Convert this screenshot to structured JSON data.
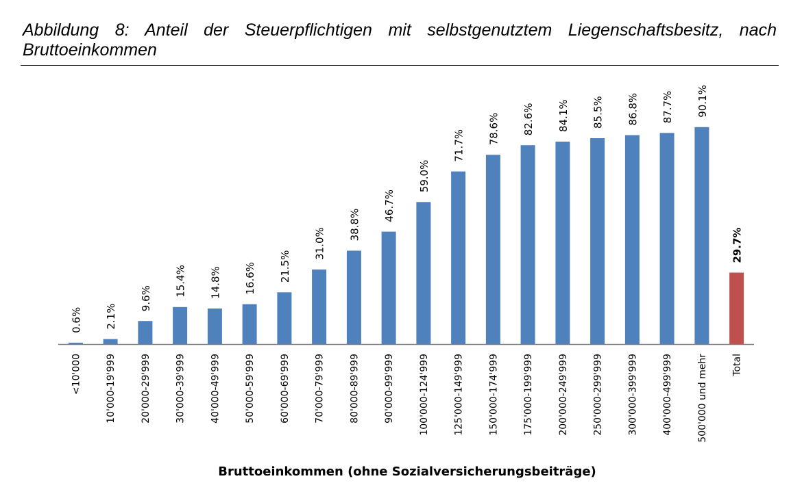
{
  "figure": {
    "caption": "Abbildung 8: Anteil der Steuerpflichtigen mit selbstgenutztem Liegenschaftsbesitz, nach Bruttoeinkommen"
  },
  "colors": {
    "bar": "#4F81BD",
    "total_bar": "#C0504D",
    "axis": "#808080",
    "text": "#000000"
  },
  "chart_data": {
    "type": "bar",
    "title": "",
    "xlabel": "Bruttoeinkommen (ohne Sozialversicherungsbeiträge)",
    "ylabel": "",
    "ylim": [
      0,
      100
    ],
    "grid": false,
    "categories": [
      "<10'000",
      "10'000-19'999",
      "20'000-29'999",
      "30'000-39'999",
      "40'000-49'999",
      "50'000-59'999",
      "60'000-69'999",
      "70'000-79'999",
      "80'000-89'999",
      "90'000-99'999",
      "100'000-124'999",
      "125'000-149'999",
      "150'000-174'999",
      "175'000-199'999",
      "200'000-249'999",
      "250'000-299'999",
      "300'000-399'999",
      "400'000-499'999",
      "500'000 und mehr",
      "Total"
    ],
    "values": [
      0.6,
      2.1,
      9.6,
      15.4,
      14.8,
      16.6,
      21.5,
      31.0,
      38.8,
      46.7,
      59.0,
      71.7,
      78.6,
      82.6,
      84.1,
      85.5,
      86.8,
      87.7,
      90.1,
      29.7
    ],
    "data_labels": [
      "0.6%",
      "2.1%",
      "9.6%",
      "15.4%",
      "14.8%",
      "16.6%",
      "21.5%",
      "31.0%",
      "38.8%",
      "46.7%",
      "59.0%",
      "71.7%",
      "78.6%",
      "82.6%",
      "84.1%",
      "85.5%",
      "86.8%",
      "87.7%",
      "90.1%",
      "29.7%"
    ],
    "highlight_index": 19
  }
}
